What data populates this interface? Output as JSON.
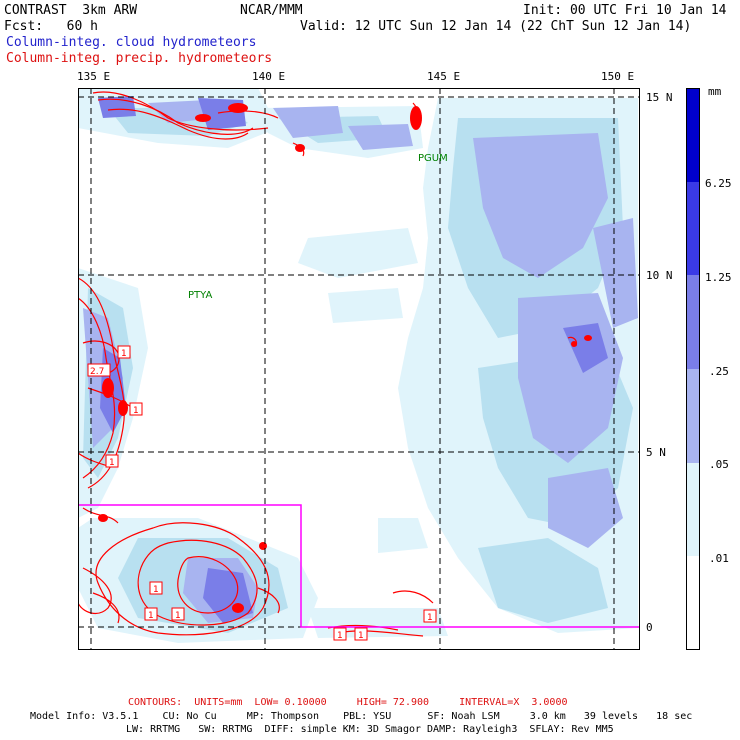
{
  "header": {
    "model": "CONTRAST  3km ARW",
    "center": "NCAR/MMM",
    "init": "Init: 00 UTC Fri 10 Jan 14",
    "fcst": "Fcst:   60 h",
    "valid": "Valid: 12 UTC Sun 12 Jan 14 (22 ChT Sun 12 Jan 14)",
    "field1": "Column-integ. cloud hydrometeors",
    "field2": "Column-integ. precip. hydrometeors"
  },
  "map": {
    "lon_labels": [
      "135 E",
      "140 E",
      "145 E",
      "150 E"
    ],
    "lat_labels": [
      "15 N",
      "10 N",
      "5 N",
      "0"
    ],
    "stations": [
      "PGUM",
      "PTYA"
    ],
    "contour_labels": [
      "1",
      "2.7",
      "1",
      "1",
      "1",
      "1",
      "1",
      "1",
      "1",
      "1"
    ],
    "colors": {
      "frame": "#000000",
      "grid": "#000000",
      "precip_contour": "#ff0000",
      "nest_box": "#ff00ff",
      "station": "#008000"
    }
  },
  "colorbar": {
    "units": "mm",
    "tick_labels": [
      "6.25",
      "1.25",
      ".25",
      ".05",
      ".01"
    ],
    "colors": [
      "#ffffff",
      "#e0f4fb",
      "#b8e0f0",
      "#a8b4f0",
      "#7a7ee8",
      "#3a3ae6",
      "#0000cc"
    ]
  },
  "footer": {
    "contours": "CONTOURS:  UNITS=mm  LOW= 0.10000     HIGH= 72.900     INTERVAL=X  3.0000",
    "model_info": "Model Info: V3.5.1    CU: No Cu     MP: Thompson    PBL: YSU      SF: Noah LSM     3.0 km   39 levels   18 sec",
    "model_info2": "LW: RRTMG   SW: RRTMG  DIFF: simple KM: 3D Smagor DAMP: Rayleigh3  SFLAY: Rev MM5"
  }
}
